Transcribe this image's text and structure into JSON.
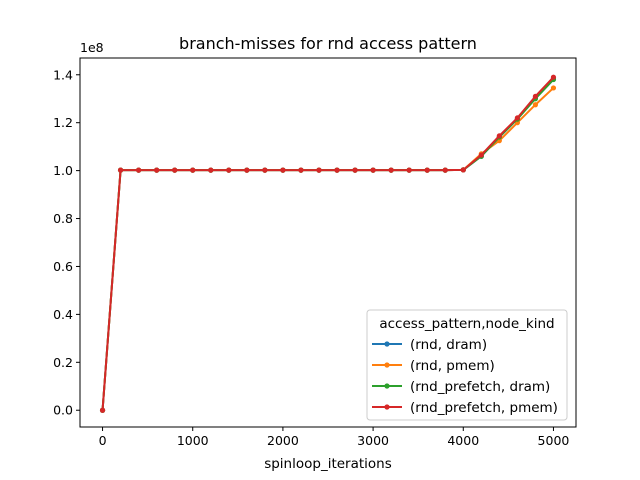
{
  "chart_data": {
    "type": "line",
    "title": "branch-misses for rnd access pattern",
    "xlabel": "spinloop_iterations",
    "ylabel": "",
    "y_offset_label": "1e8",
    "xlim": [
      -250,
      5250
    ],
    "ylim": [
      -0.07,
      1.47
    ],
    "x_ticks": [
      0,
      1000,
      2000,
      3000,
      4000,
      5000
    ],
    "x_tick_labels": [
      "0",
      "1000",
      "2000",
      "3000",
      "4000",
      "5000"
    ],
    "y_ticks": [
      0.0,
      0.2,
      0.4,
      0.6,
      0.8,
      1.0,
      1.2,
      1.4
    ],
    "y_tick_labels": [
      "0.0",
      "0.2",
      "0.4",
      "0.6",
      "0.8",
      "1.0",
      "1.2",
      "1.4"
    ],
    "grid": false,
    "legend": {
      "title": "access_pattern,node_kind",
      "placement": "lower-right"
    },
    "x": [
      0,
      200,
      400,
      600,
      800,
      1000,
      1200,
      1400,
      1600,
      1800,
      2000,
      2200,
      2400,
      2600,
      2800,
      3000,
      3200,
      3400,
      3600,
      3800,
      4000,
      4200,
      4400,
      4600,
      4800,
      5000
    ],
    "series": [
      {
        "name": "(rnd, dram)",
        "color": "#1f77b4",
        "values": [
          0.0,
          1.002,
          1.002,
          1.002,
          1.002,
          1.002,
          1.002,
          1.002,
          1.002,
          1.002,
          1.002,
          1.002,
          1.002,
          1.002,
          1.002,
          1.002,
          1.002,
          1.002,
          1.002,
          1.002,
          1.003,
          1.06,
          1.14,
          1.215,
          1.305,
          1.385
        ]
      },
      {
        "name": "(rnd, pmem)",
        "color": "#ff7f0e",
        "values": [
          0.0,
          1.002,
          1.002,
          1.002,
          1.002,
          1.002,
          1.002,
          1.002,
          1.002,
          1.002,
          1.002,
          1.002,
          1.002,
          1.002,
          1.002,
          1.002,
          1.002,
          1.002,
          1.002,
          1.002,
          1.003,
          1.07,
          1.125,
          1.2,
          1.275,
          1.345
        ]
      },
      {
        "name": "(rnd_prefetch, dram)",
        "color": "#2ca02c",
        "values": [
          0.0,
          1.002,
          1.002,
          1.002,
          1.002,
          1.002,
          1.002,
          1.002,
          1.002,
          1.002,
          1.002,
          1.002,
          1.002,
          1.002,
          1.002,
          1.002,
          1.002,
          1.002,
          1.002,
          1.002,
          1.003,
          1.06,
          1.14,
          1.215,
          1.3,
          1.38
        ]
      },
      {
        "name": "(rnd_prefetch, pmem)",
        "color": "#d62728",
        "values": [
          0.0,
          1.002,
          1.002,
          1.002,
          1.002,
          1.002,
          1.002,
          1.002,
          1.002,
          1.002,
          1.002,
          1.002,
          1.002,
          1.002,
          1.002,
          1.002,
          1.002,
          1.002,
          1.002,
          1.002,
          1.003,
          1.065,
          1.145,
          1.22,
          1.31,
          1.39
        ]
      }
    ]
  }
}
